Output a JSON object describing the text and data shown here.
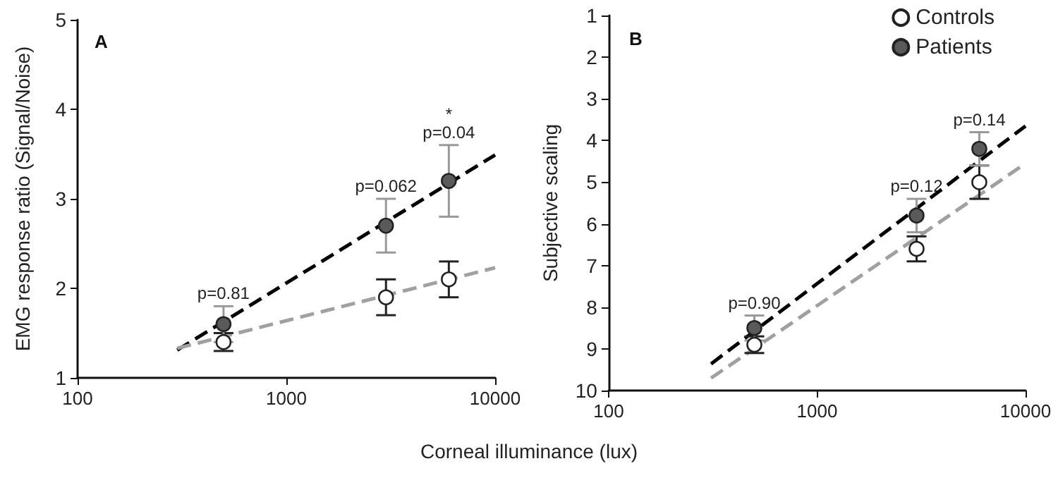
{
  "chart_data": [
    {
      "type": "scatter",
      "title": "A",
      "xlabel": "Corneal illuminance (lux)",
      "ylabel": "EMG response ratio (Signal/Noise)",
      "log": "x",
      "xlim": [
        100,
        10000
      ],
      "xticks": [
        100,
        1000,
        10000
      ],
      "ylim": [
        1,
        5
      ],
      "yticks": [
        1,
        2,
        3,
        4,
        5
      ],
      "grid": false,
      "legend": false,
      "marker": "circle",
      "x": [
        500,
        3000,
        6000
      ],
      "series": [
        {
          "color": "#ffffff",
          "values": [
            1.4,
            1.9,
            2.1
          ],
          "errors": [
            0.1,
            0.2,
            0.2
          ]
        },
        {
          "color": "#5a5a5a",
          "values": [
            1.6,
            2.7,
            3.2
          ],
          "errors": [
            0.2,
            0.3,
            0.4
          ]
        },
        {
          "type": "line",
          "color": "#000000",
          "line_style": "dashed",
          "marker": "none",
          "x": [
            300,
            10000
          ],
          "values": [
            1.31,
            3.49
          ]
        },
        {
          "type": "line",
          "color": "#a0a0a0",
          "line_style": "dashed",
          "marker": "none",
          "x": [
            300,
            10000
          ],
          "values": [
            1.33,
            2.23
          ]
        }
      ],
      "annotations": [
        {
          "text": "p=0.81",
          "x": 500,
          "y": 1.8
        },
        {
          "text": "p=0.062",
          "x": 3000,
          "y": 3.0
        },
        {
          "text": "p=0.04",
          "x": 6000,
          "y": 3.6
        },
        {
          "text": "*",
          "x": 6000,
          "y": 3.6
        }
      ]
    },
    {
      "type": "scatter",
      "title": "B",
      "ylabel": "Subjective scaling",
      "log": "x",
      "xlim": [
        100,
        10000
      ],
      "xticks": [
        100,
        1000,
        10000
      ],
      "ylim": [
        10,
        1
      ],
      "yticks": [
        1,
        2,
        3,
        4,
        5,
        6,
        7,
        8,
        9,
        10
      ],
      "grid": false,
      "legend": "top right",
      "marker": "circle",
      "x": [
        500,
        3000,
        6000
      ],
      "series": [
        {
          "name": "Controls",
          "color": "#ffffff",
          "values": [
            8.9,
            6.6,
            5.0
          ],
          "errors": [
            0.2,
            0.3,
            0.4
          ]
        },
        {
          "name": "Patients",
          "color": "#5a5a5a",
          "values": [
            8.5,
            5.8,
            4.2
          ],
          "errors": [
            0.3,
            0.4,
            0.4
          ]
        },
        {
          "type": "line",
          "color": "#000000",
          "line_style": "dashed",
          "marker": "none",
          "x": [
            310,
            10000
          ],
          "values": [
            9.36,
            3.65
          ]
        },
        {
          "type": "line",
          "color": "#a0a0a0",
          "line_style": "dashed",
          "marker": "none",
          "x": [
            310,
            10000
          ],
          "values": [
            9.7,
            4.55
          ]
        }
      ],
      "annotations": [
        {
          "text": "p=0.90",
          "x": 500,
          "y": 8.2
        },
        {
          "text": "p=0.12",
          "x": 3000,
          "y": 5.4
        },
        {
          "text": "p=0.14",
          "x": 6000,
          "y": 3.8
        }
      ]
    }
  ]
}
